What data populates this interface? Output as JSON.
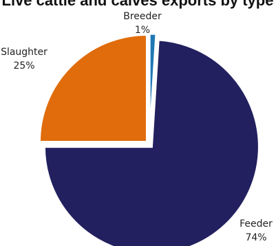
{
  "chart_data": {
    "type": "pie",
    "title": "Live cattle and calves exports by type",
    "slices": [
      {
        "label": "Breeder",
        "value": 1,
        "value_label": "1%",
        "color": "#1f77b4"
      },
      {
        "label": "Feeder",
        "value": 74,
        "value_label": "74%",
        "color": "#22205e"
      },
      {
        "label": "Slaughter",
        "value": 25,
        "value_label": "25%",
        "color": "#e06c0b"
      }
    ],
    "start_angle_deg": 0,
    "direction": "clockwise",
    "labels_outside": true
  }
}
